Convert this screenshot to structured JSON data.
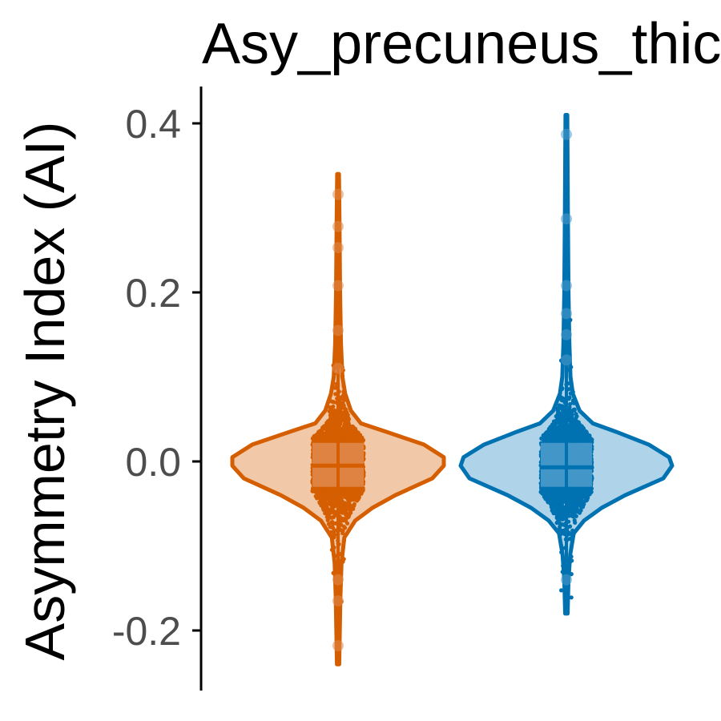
{
  "chart_data": {
    "type": "violin",
    "title": "Asy_precuneus_thic",
    "xlabel": "",
    "ylabel": "Asymmetry Index (AI)",
    "ylim": [
      -0.27,
      0.44
    ],
    "y_ticks": [
      {
        "value": 0.4,
        "label": "0.4"
      },
      {
        "value": 0.2,
        "label": "0.2"
      },
      {
        "value": 0.0,
        "label": "0.0"
      },
      {
        "value": -0.2,
        "label": "-0.2"
      }
    ],
    "grid": false,
    "legend": "none",
    "series": [
      {
        "color": "#d55e00",
        "fill": "#f1c9a8",
        "box_fill": "#e08a4d",
        "min": -0.24,
        "max": 0.34,
        "q1": -0.03,
        "median": -0.005,
        "q3": 0.022,
        "density": [
          [
            -0.24,
            0.004
          ],
          [
            -0.16,
            0.008
          ],
          [
            -0.12,
            0.012
          ],
          [
            -0.09,
            0.022
          ],
          [
            -0.07,
            0.06
          ],
          [
            -0.055,
            0.12
          ],
          [
            -0.04,
            0.2
          ],
          [
            -0.02,
            0.33
          ],
          [
            -0.005,
            0.37
          ],
          [
            0.005,
            0.37
          ],
          [
            0.02,
            0.3
          ],
          [
            0.035,
            0.17
          ],
          [
            0.045,
            0.08
          ],
          [
            0.06,
            0.045
          ],
          [
            0.08,
            0.025
          ],
          [
            0.1,
            0.015
          ],
          [
            0.14,
            0.01
          ],
          [
            0.2,
            0.007
          ],
          [
            0.28,
            0.005
          ],
          [
            0.34,
            0.003
          ]
        ],
        "highlight_points": [
          0.316,
          0.278,
          0.253,
          0.208,
          0.155,
          0.11,
          -0.14,
          -0.165,
          -0.218
        ]
      },
      {
        "color": "#0072b2",
        "fill": "#afd3e8",
        "box_fill": "#4f9ccb",
        "min": -0.18,
        "max": 0.41,
        "q1": -0.03,
        "median": -0.007,
        "q3": 0.022,
        "density": [
          [
            -0.18,
            0.004
          ],
          [
            -0.14,
            0.007
          ],
          [
            -0.11,
            0.013
          ],
          [
            -0.085,
            0.025
          ],
          [
            -0.07,
            0.06
          ],
          [
            -0.055,
            0.12
          ],
          [
            -0.04,
            0.2
          ],
          [
            -0.02,
            0.33
          ],
          [
            -0.005,
            0.36
          ],
          [
            0.005,
            0.35
          ],
          [
            0.02,
            0.28
          ],
          [
            0.035,
            0.17
          ],
          [
            0.045,
            0.09
          ],
          [
            0.06,
            0.045
          ],
          [
            0.08,
            0.022
          ],
          [
            0.1,
            0.014
          ],
          [
            0.14,
            0.01
          ],
          [
            0.2,
            0.007
          ],
          [
            0.3,
            0.005
          ],
          [
            0.41,
            0.003
          ]
        ],
        "highlight_points": [
          0.387,
          0.287,
          0.208,
          0.175,
          0.15,
          0.12,
          -0.14
        ]
      }
    ]
  }
}
